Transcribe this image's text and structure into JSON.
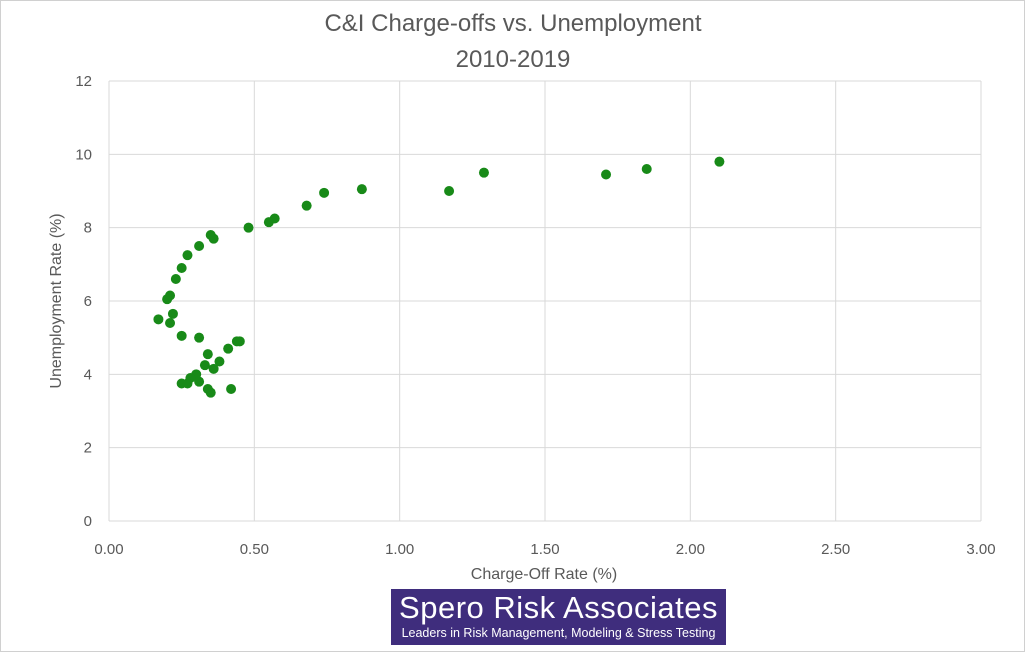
{
  "chart_data": {
    "type": "scatter",
    "title": [
      "C&I Charge-offs vs. Unemployment",
      "2010-2019"
    ],
    "xlabel": "Charge-Off Rate (%)",
    "ylabel": "Unemployment  Rate (%)",
    "xlim": [
      0,
      3
    ],
    "ylim": [
      0,
      12
    ],
    "xticks": [
      "0.00",
      "0.50",
      "1.00",
      "1.50",
      "2.00",
      "2.50",
      "3.00"
    ],
    "yticks": [
      "0",
      "2",
      "4",
      "6",
      "8",
      "10",
      "12"
    ],
    "grid": true,
    "legend": "none",
    "point_color": "#188a18",
    "series": [
      {
        "points": [
          {
            "x": 2.1,
            "y": 9.8
          },
          {
            "x": 1.85,
            "y": 9.6
          },
          {
            "x": 1.71,
            "y": 9.45
          },
          {
            "x": 1.29,
            "y": 9.5
          },
          {
            "x": 1.17,
            "y": 9.0
          },
          {
            "x": 0.87,
            "y": 9.05
          },
          {
            "x": 0.74,
            "y": 8.95
          },
          {
            "x": 0.68,
            "y": 8.6
          },
          {
            "x": 0.57,
            "y": 8.25
          },
          {
            "x": 0.55,
            "y": 8.15
          },
          {
            "x": 0.48,
            "y": 8.0
          },
          {
            "x": 0.35,
            "y": 7.8
          },
          {
            "x": 0.36,
            "y": 7.7
          },
          {
            "x": 0.31,
            "y": 7.5
          },
          {
            "x": 0.27,
            "y": 7.25
          },
          {
            "x": 0.25,
            "y": 6.9
          },
          {
            "x": 0.23,
            "y": 6.6
          },
          {
            "x": 0.21,
            "y": 6.15
          },
          {
            "x": 0.2,
            "y": 6.05
          },
          {
            "x": 0.22,
            "y": 5.65
          },
          {
            "x": 0.17,
            "y": 5.5
          },
          {
            "x": 0.21,
            "y": 5.4
          },
          {
            "x": 0.25,
            "y": 5.05
          },
          {
            "x": 0.31,
            "y": 5.0
          },
          {
            "x": 0.44,
            "y": 4.9
          },
          {
            "x": 0.45,
            "y": 4.9
          },
          {
            "x": 0.41,
            "y": 4.7
          },
          {
            "x": 0.34,
            "y": 4.55
          },
          {
            "x": 0.38,
            "y": 4.35
          },
          {
            "x": 0.33,
            "y": 4.25
          },
          {
            "x": 0.36,
            "y": 4.15
          },
          {
            "x": 0.3,
            "y": 4.0
          },
          {
            "x": 0.28,
            "y": 3.9
          },
          {
            "x": 0.31,
            "y": 3.8
          },
          {
            "x": 0.25,
            "y": 3.75
          },
          {
            "x": 0.27,
            "y": 3.75
          },
          {
            "x": 0.42,
            "y": 3.6
          },
          {
            "x": 0.34,
            "y": 3.6
          },
          {
            "x": 0.35,
            "y": 3.5
          }
        ]
      }
    ]
  },
  "logo": {
    "name": "Spero Risk Associates",
    "tagline": "Leaders in Risk Management, Modeling & Stress Testing"
  }
}
